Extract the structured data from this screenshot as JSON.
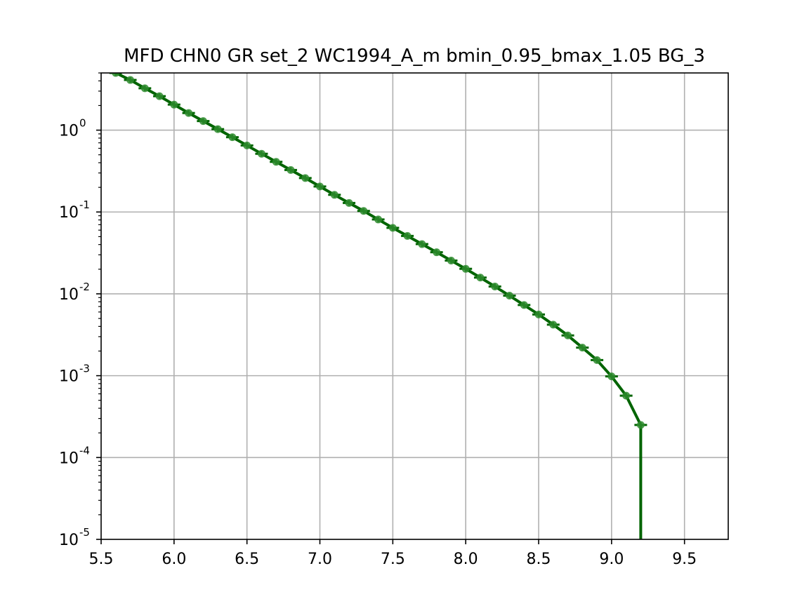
{
  "chart_data": {
    "type": "line",
    "title": "MFD CHN0 GR set_2 WC1994_A_m bmin_0.95_bmax_1.05 BG_3",
    "xlabel": "",
    "ylabel": "",
    "xlim": [
      5.5,
      9.8
    ],
    "ylim": [
      1e-05,
      5
    ],
    "yscale": "log",
    "grid": true,
    "xticks": [
      "5.5",
      "6.0",
      "6.5",
      "7.0",
      "7.5",
      "8.0",
      "8.5",
      "9.0",
      "9.5"
    ],
    "yticks": [
      {
        "base": "10",
        "exp": "-5",
        "value": 1e-05
      },
      {
        "base": "10",
        "exp": "-4",
        "value": 0.0001
      },
      {
        "base": "10",
        "exp": "-3",
        "value": 0.001
      },
      {
        "base": "10",
        "exp": "-2",
        "value": 0.01
      },
      {
        "base": "10",
        "exp": "-1",
        "value": 0.1
      },
      {
        "base": "10",
        "exp": "0",
        "value": 1
      }
    ],
    "line_color": "#006400",
    "marker_color": "#2e8b2e",
    "series": [
      {
        "x": [
          5.6,
          5.7,
          5.8,
          5.9,
          6.0,
          6.1,
          6.2,
          6.3,
          6.4,
          6.5,
          6.6,
          6.7,
          6.8,
          6.9,
          7.0,
          7.1,
          7.2,
          7.3,
          7.4,
          7.5,
          7.6,
          7.7,
          7.8,
          7.9,
          8.0,
          8.1,
          8.2,
          8.3,
          8.4,
          8.5,
          8.6,
          8.7,
          8.8,
          8.9,
          9.0,
          9.1,
          9.2,
          9.2
        ],
        "y": [
          5.0,
          4.1,
          3.25,
          2.6,
          2.05,
          1.62,
          1.29,
          1.03,
          0.82,
          0.65,
          0.515,
          0.41,
          0.326,
          0.26,
          0.205,
          0.162,
          0.129,
          0.103,
          0.081,
          0.064,
          0.051,
          0.0405,
          0.0322,
          0.0255,
          0.0202,
          0.0158,
          0.0123,
          0.0095,
          0.0073,
          0.0056,
          0.0042,
          0.0031,
          0.0022,
          0.00155,
          0.00098,
          0.00057,
          0.00025,
          1e-05
        ]
      }
    ]
  }
}
